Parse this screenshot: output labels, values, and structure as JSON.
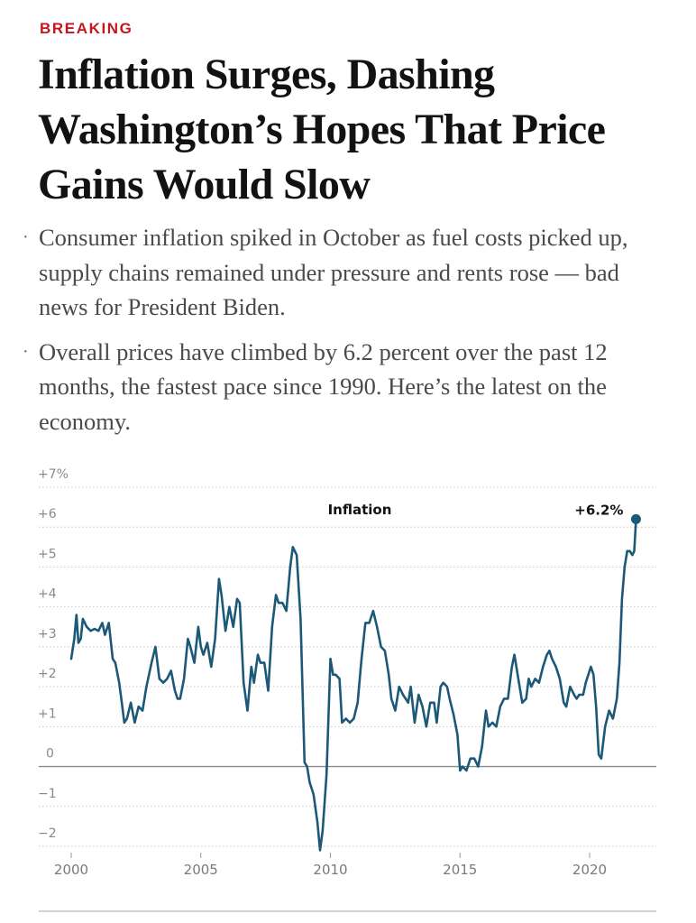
{
  "article": {
    "kicker": "BREAKING",
    "headline": "Inflation Surges, Dashing Washington’s Hopes That Price Gains Would Slow",
    "bullets": [
      "Consumer inflation spiked in October as fuel costs picked up, supply chains remained under pressure and rents rose — bad news for President Biden.",
      "Overall prices have climbed by 6.2 percent over the past 12 months, the fastest pace since 1990. Here’s the latest on the economy."
    ],
    "bullet_marker": "·"
  },
  "chart_data": {
    "type": "line",
    "title": "Inflation",
    "xlabel": "",
    "ylabel": "",
    "ylim": [
      -2,
      7
    ],
    "xlim": [
      1999.4,
      2023.2
    ],
    "y_ticks": [
      {
        "value": 7,
        "label": "+7%"
      },
      {
        "value": 6,
        "label": "+6"
      },
      {
        "value": 5,
        "label": "+5"
      },
      {
        "value": 4,
        "label": "+4"
      },
      {
        "value": 3,
        "label": "+3"
      },
      {
        "value": 2,
        "label": "+2"
      },
      {
        "value": 1,
        "label": "+1"
      },
      {
        "value": 0,
        "label": "0"
      },
      {
        "value": -1,
        "label": "-1"
      },
      {
        "value": -2,
        "label": "-2"
      }
    ],
    "x_ticks": [
      {
        "value": 2000,
        "label": "2000"
      },
      {
        "value": 2005,
        "label": "2005"
      },
      {
        "value": 2010,
        "label": "2010"
      },
      {
        "value": 2015,
        "label": "2015"
      },
      {
        "value": 2020,
        "label": "2020"
      }
    ],
    "grid": true,
    "line_color": "#1c5877",
    "end_annotation": {
      "label": "+6.2%",
      "x": 2021.79,
      "y": 6.2
    },
    "series": [
      {
        "name": "Inflation",
        "points": [
          [
            2000.0,
            2.7
          ],
          [
            2000.12,
            3.2
          ],
          [
            2000.2,
            3.8
          ],
          [
            2000.28,
            3.1
          ],
          [
            2000.37,
            3.2
          ],
          [
            2000.45,
            3.7
          ],
          [
            2000.6,
            3.5
          ],
          [
            2000.75,
            3.4
          ],
          [
            2000.9,
            3.45
          ],
          [
            2001.05,
            3.4
          ],
          [
            2001.2,
            3.6
          ],
          [
            2001.3,
            3.3
          ],
          [
            2001.45,
            3.6
          ],
          [
            2001.6,
            2.7
          ],
          [
            2001.7,
            2.6
          ],
          [
            2001.85,
            2.1
          ],
          [
            2001.95,
            1.6
          ],
          [
            2002.05,
            1.1
          ],
          [
            2002.15,
            1.2
          ],
          [
            2002.3,
            1.6
          ],
          [
            2002.45,
            1.1
          ],
          [
            2002.6,
            1.5
          ],
          [
            2002.75,
            1.4
          ],
          [
            2002.9,
            2.0
          ],
          [
            2003.1,
            2.6
          ],
          [
            2003.25,
            3.0
          ],
          [
            2003.4,
            2.2
          ],
          [
            2003.55,
            2.1
          ],
          [
            2003.7,
            2.2
          ],
          [
            2003.85,
            2.4
          ],
          [
            2004.0,
            1.9
          ],
          [
            2004.1,
            1.7
          ],
          [
            2004.2,
            1.7
          ],
          [
            2004.35,
            2.2
          ],
          [
            2004.5,
            3.2
          ],
          [
            2004.6,
            3.0
          ],
          [
            2004.75,
            2.6
          ],
          [
            2004.9,
            3.5
          ],
          [
            2005.0,
            3.0
          ],
          [
            2005.1,
            2.8
          ],
          [
            2005.25,
            3.1
          ],
          [
            2005.4,
            2.5
          ],
          [
            2005.55,
            3.2
          ],
          [
            2005.7,
            4.7
          ],
          [
            2005.8,
            4.3
          ],
          [
            2005.95,
            3.4
          ],
          [
            2006.1,
            4.0
          ],
          [
            2006.25,
            3.5
          ],
          [
            2006.4,
            4.2
          ],
          [
            2006.5,
            4.1
          ],
          [
            2006.65,
            2.1
          ],
          [
            2006.8,
            1.4
          ],
          [
            2006.95,
            2.5
          ],
          [
            2007.05,
            2.1
          ],
          [
            2007.2,
            2.8
          ],
          [
            2007.3,
            2.6
          ],
          [
            2007.45,
            2.6
          ],
          [
            2007.6,
            1.9
          ],
          [
            2007.75,
            3.5
          ],
          [
            2007.9,
            4.3
          ],
          [
            2008.0,
            4.1
          ],
          [
            2008.15,
            4.1
          ],
          [
            2008.3,
            3.9
          ],
          [
            2008.45,
            5.0
          ],
          [
            2008.55,
            5.5
          ],
          [
            2008.7,
            5.3
          ],
          [
            2008.85,
            3.7
          ],
          [
            2009.0,
            0.1
          ],
          [
            2009.1,
            0.0
          ],
          [
            2009.2,
            -0.4
          ],
          [
            2009.35,
            -0.7
          ],
          [
            2009.5,
            -1.4
          ],
          [
            2009.6,
            -2.1
          ],
          [
            2009.7,
            -1.6
          ],
          [
            2009.85,
            -0.2
          ],
          [
            2010.0,
            2.7
          ],
          [
            2010.1,
            2.3
          ],
          [
            2010.2,
            2.3
          ],
          [
            2010.35,
            2.2
          ],
          [
            2010.45,
            1.1
          ],
          [
            2010.6,
            1.2
          ],
          [
            2010.75,
            1.1
          ],
          [
            2010.9,
            1.2
          ],
          [
            2011.05,
            1.6
          ],
          [
            2011.2,
            2.7
          ],
          [
            2011.35,
            3.6
          ],
          [
            2011.5,
            3.6
          ],
          [
            2011.65,
            3.9
          ],
          [
            2011.8,
            3.5
          ],
          [
            2011.95,
            3.0
          ],
          [
            2012.1,
            2.9
          ],
          [
            2012.25,
            2.3
          ],
          [
            2012.35,
            1.7
          ],
          [
            2012.5,
            1.4
          ],
          [
            2012.65,
            2.0
          ],
          [
            2012.8,
            1.8
          ],
          [
            2012.9,
            1.7
          ],
          [
            2013.0,
            1.6
          ],
          [
            2013.1,
            2.0
          ],
          [
            2013.25,
            1.1
          ],
          [
            2013.4,
            1.8
          ],
          [
            2013.55,
            1.5
          ],
          [
            2013.7,
            1.0
          ],
          [
            2013.85,
            1.6
          ],
          [
            2014.0,
            1.6
          ],
          [
            2014.1,
            1.1
          ],
          [
            2014.25,
            2.0
          ],
          [
            2014.35,
            2.1
          ],
          [
            2014.5,
            2.0
          ],
          [
            2014.6,
            1.7
          ],
          [
            2014.75,
            1.3
          ],
          [
            2014.9,
            0.8
          ],
          [
            2015.0,
            -0.1
          ],
          [
            2015.1,
            0.0
          ],
          [
            2015.25,
            -0.1
          ],
          [
            2015.4,
            0.2
          ],
          [
            2015.55,
            0.2
          ],
          [
            2015.7,
            0.0
          ],
          [
            2015.85,
            0.5
          ],
          [
            2016.0,
            1.4
          ],
          [
            2016.1,
            1.0
          ],
          [
            2016.25,
            1.1
          ],
          [
            2016.4,
            1.0
          ],
          [
            2016.55,
            1.5
          ],
          [
            2016.7,
            1.7
          ],
          [
            2016.85,
            1.7
          ],
          [
            2017.0,
            2.5
          ],
          [
            2017.1,
            2.8
          ],
          [
            2017.25,
            2.2
          ],
          [
            2017.4,
            1.6
          ],
          [
            2017.55,
            1.7
          ],
          [
            2017.65,
            2.2
          ],
          [
            2017.75,
            2.0
          ],
          [
            2017.9,
            2.2
          ],
          [
            2018.05,
            2.1
          ],
          [
            2018.2,
            2.5
          ],
          [
            2018.35,
            2.8
          ],
          [
            2018.45,
            2.9
          ],
          [
            2018.55,
            2.7
          ],
          [
            2018.7,
            2.5
          ],
          [
            2018.85,
            2.2
          ],
          [
            2019.0,
            1.6
          ],
          [
            2019.1,
            1.5
          ],
          [
            2019.25,
            2.0
          ],
          [
            2019.4,
            1.8
          ],
          [
            2019.5,
            1.7
          ],
          [
            2019.6,
            1.8
          ],
          [
            2019.75,
            1.8
          ],
          [
            2019.85,
            2.1
          ],
          [
            2020.05,
            2.5
          ],
          [
            2020.15,
            2.3
          ],
          [
            2020.25,
            1.5
          ],
          [
            2020.35,
            0.3
          ],
          [
            2020.45,
            0.2
          ],
          [
            2020.6,
            1.0
          ],
          [
            2020.75,
            1.4
          ],
          [
            2020.9,
            1.2
          ],
          [
            2021.05,
            1.7
          ],
          [
            2021.15,
            2.6
          ],
          [
            2021.25,
            4.2
          ],
          [
            2021.35,
            5.0
          ],
          [
            2021.45,
            5.4
          ],
          [
            2021.55,
            5.4
          ],
          [
            2021.65,
            5.3
          ],
          [
            2021.72,
            5.4
          ],
          [
            2021.79,
            6.2
          ]
        ]
      }
    ]
  }
}
